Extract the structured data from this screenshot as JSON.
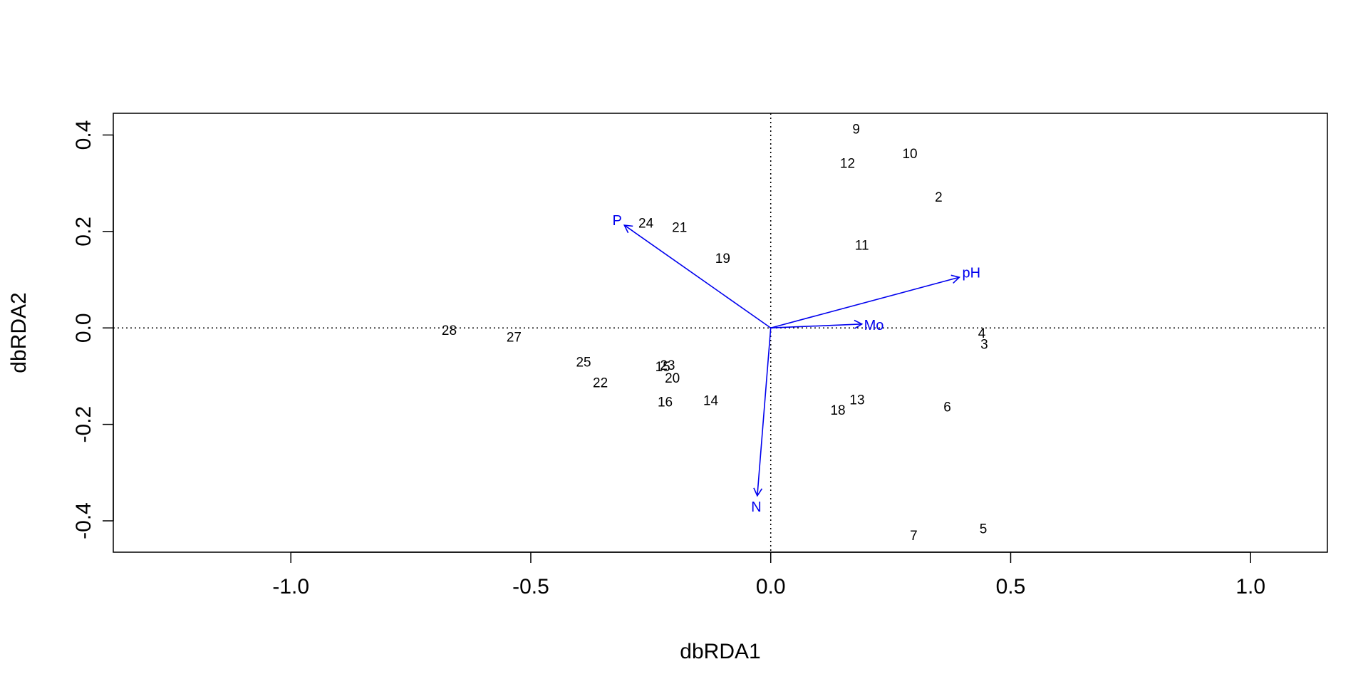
{
  "chart_data": {
    "type": "scatter",
    "title": "",
    "xlabel": "dbRDA1",
    "ylabel": "dbRDA2",
    "xlim": [
      -1.37,
      1.16
    ],
    "ylim": [
      -0.465,
      0.445
    ],
    "x_ticks": [
      -1.0,
      -0.5,
      0.0,
      0.5,
      1.0
    ],
    "x_tick_labels": [
      "-1.0",
      "-0.5",
      "0.0",
      "0.5",
      "1.0"
    ],
    "y_ticks": [
      -0.4,
      -0.2,
      0.0,
      0.2,
      0.4
    ],
    "y_tick_labels": [
      "-0.4",
      "-0.2",
      "0.0",
      "0.2",
      "0.4"
    ],
    "reference_lines": {
      "x": 0,
      "y": 0,
      "style": "dotted"
    },
    "grid": false,
    "legend": "none",
    "site_color": "#000000",
    "vector_color": "#0000ee",
    "sites": [
      {
        "label": "2",
        "x": 0.35,
        "y": 0.27
      },
      {
        "label": "3",
        "x": 0.445,
        "y": -0.035
      },
      {
        "label": "4",
        "x": 0.44,
        "y": -0.012
      },
      {
        "label": "5",
        "x": 0.443,
        "y": -0.418
      },
      {
        "label": "6",
        "x": 0.368,
        "y": -0.165
      },
      {
        "label": "7",
        "x": 0.298,
        "y": -0.432
      },
      {
        "label": "9",
        "x": 0.178,
        "y": 0.411
      },
      {
        "label": "10",
        "x": 0.29,
        "y": 0.36
      },
      {
        "label": "11",
        "x": 0.19,
        "y": 0.17
      },
      {
        "label": "12",
        "x": 0.16,
        "y": 0.34
      },
      {
        "label": "13",
        "x": 0.18,
        "y": -0.15
      },
      {
        "label": "14",
        "x": -0.125,
        "y": -0.152
      },
      {
        "label": "15",
        "x": -0.225,
        "y": -0.082
      },
      {
        "label": "16",
        "x": -0.22,
        "y": -0.155
      },
      {
        "label": "18",
        "x": 0.14,
        "y": -0.172
      },
      {
        "label": "19",
        "x": -0.1,
        "y": 0.143
      },
      {
        "label": "20",
        "x": -0.205,
        "y": -0.105
      },
      {
        "label": "21",
        "x": -0.19,
        "y": 0.207
      },
      {
        "label": "22",
        "x": -0.355,
        "y": -0.115
      },
      {
        "label": "23",
        "x": -0.215,
        "y": -0.079
      },
      {
        "label": "24",
        "x": -0.26,
        "y": 0.216
      },
      {
        "label": "25",
        "x": -0.39,
        "y": -0.072
      },
      {
        "label": "27",
        "x": -0.535,
        "y": -0.02
      },
      {
        "label": "28",
        "x": -0.67,
        "y": -0.006
      }
    ],
    "vectors": [
      {
        "label": "P",
        "x": -0.305,
        "y": 0.213,
        "label_x": -0.32,
        "label_y": 0.222
      },
      {
        "label": "pH",
        "x": 0.393,
        "y": 0.105,
        "label_x": 0.418,
        "label_y": 0.113
      },
      {
        "label": "Mo",
        "x": 0.19,
        "y": 0.008,
        "label_x": 0.215,
        "label_y": 0.005
      },
      {
        "label": "N",
        "x": -0.028,
        "y": -0.348,
        "label_x": -0.03,
        "label_y": -0.372
      }
    ]
  }
}
